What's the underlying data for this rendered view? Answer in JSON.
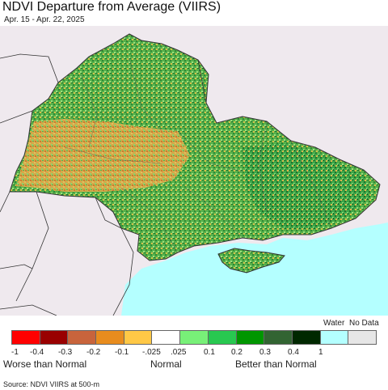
{
  "title": "NDVI Departure from Average (VIIRS)",
  "subtitle": "Apr. 15 - Apr. 22, 2025",
  "legend": {
    "header_labels": [
      "Water",
      "No Data"
    ],
    "bins": [
      {
        "color": "#ff0000"
      },
      {
        "color": "#990000"
      },
      {
        "color": "#c8643c"
      },
      {
        "color": "#e88c1e"
      },
      {
        "color": "#ffc846"
      },
      {
        "color": "#ffffff"
      },
      {
        "color": "#78f078"
      },
      {
        "color": "#28c850"
      },
      {
        "color": "#009600"
      },
      {
        "color": "#326432"
      },
      {
        "color": "#002800"
      },
      {
        "color": "#b4ffff"
      },
      {
        "color": "#e6e6e6"
      }
    ],
    "ticks": [
      "-1",
      "-0.4",
      "-0.3",
      "-0.2",
      "-0.1",
      "-.025",
      ".025",
      "0.1",
      "0.2",
      "0.3",
      "0.4",
      "1"
    ],
    "categories": [
      "Worse than Normal",
      "Normal",
      "Better than Normal"
    ]
  },
  "source": "Source: NDVI VIIRS at 500-m",
  "colors": {
    "background_land": "#efe9ee",
    "water": "#b4ffff",
    "border": "#333333"
  }
}
